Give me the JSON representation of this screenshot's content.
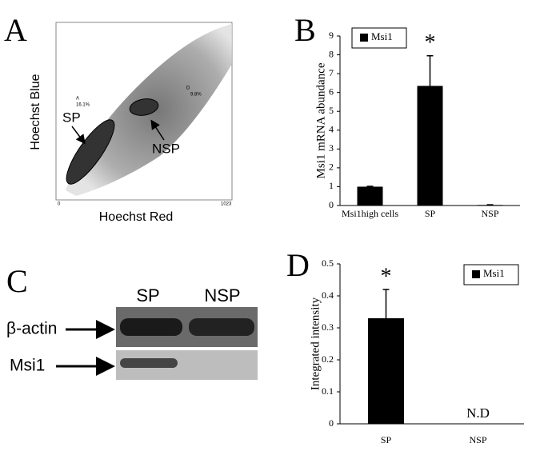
{
  "panel_a": {
    "letter": "A",
    "y_label": "Hoechst Blue",
    "x_label": "Hoechst Red",
    "sp_label": "SP",
    "nsp_label": "NSP",
    "gate_a": "A",
    "gate_a_pct": "16.1%",
    "gate_d": "D",
    "gate_d_pct": "9.8%",
    "axis_min": "0",
    "axis_max": "1023"
  },
  "panel_c": {
    "letter": "C",
    "lanes": [
      "SP",
      "NSP"
    ],
    "rows": [
      "β-actin",
      "Msi1"
    ]
  },
  "chart_data": [
    {
      "type": "bar",
      "letter": "B",
      "ylabel": "Msi1 mRNA abundance",
      "categories": [
        "Msi1high cells",
        "SP",
        "NSP"
      ],
      "series": [
        {
          "name": "Msi1",
          "color": "#000000",
          "values": [
            1.0,
            6.35,
            0.03
          ],
          "errors": [
            0.02,
            1.6,
            0.01
          ]
        }
      ],
      "annotations": [
        "*"
      ],
      "ylim": [
        0,
        9
      ],
      "yticks": [
        0,
        1,
        2,
        3,
        4,
        5,
        6,
        7,
        8,
        9
      ],
      "legend": "top-left"
    },
    {
      "type": "bar",
      "letter": "D",
      "ylabel": "Integrated intensity",
      "categories": [
        "SP",
        "NSP"
      ],
      "series": [
        {
          "name": "Msi1",
          "color": "#000000",
          "values": [
            0.33,
            null
          ],
          "errors": [
            0.09,
            null
          ]
        }
      ],
      "annotations": [
        "*",
        "N.D"
      ],
      "ylim": [
        0,
        0.5
      ],
      "yticks": [
        0,
        0.1,
        0.2,
        0.3,
        0.4,
        0.5
      ],
      "legend": "top-right"
    }
  ]
}
